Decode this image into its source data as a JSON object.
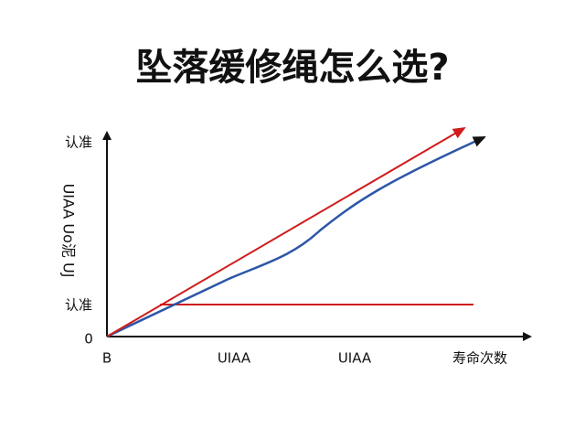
{
  "title": "坠落缓修绳怎么选?",
  "y_axis": {
    "title": "UIAA Uo泥 UJ",
    "top_label": "认准",
    "mid_label": "认准",
    "origin_label": "0"
  },
  "x_axis": {
    "labels": [
      "B",
      "UIAA",
      "UIAA",
      "寿命次数"
    ]
  }
}
